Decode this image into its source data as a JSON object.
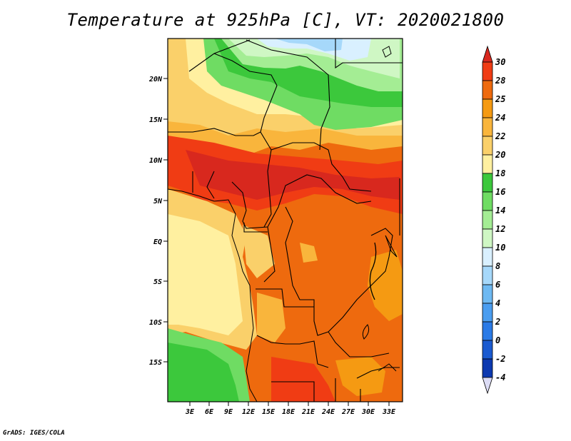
{
  "title": "Temperature at 925hPa [C], VT: 2020021800",
  "credit": "GrADS: IGES/COLA",
  "map": {
    "lat_labels": [
      "20N",
      "15N",
      "10N",
      "5N",
      "EQ",
      "5S",
      "10S",
      "15S"
    ],
    "lon_labels": [
      "3E",
      "6E",
      "9E",
      "12E",
      "15E",
      "18E",
      "21E",
      "24E",
      "27E",
      "30E",
      "33E"
    ]
  },
  "colorbar": {
    "levels": [
      "30",
      "28",
      "25",
      "24",
      "22",
      "20",
      "18",
      "16",
      "14",
      "12",
      "10",
      "8",
      "6",
      "4",
      "2",
      "0",
      "-2",
      "-4"
    ],
    "colors": {
      "above_30": "#d8281e",
      "c28_30": "#f03c14",
      "c25_28": "#ee6a0e",
      "c24_25": "#f59a12",
      "c22_24": "#f9b53c",
      "c20_22": "#fad06a",
      "c18_20": "#fff0a0",
      "c16_18": "#3cc83c",
      "c14_16": "#6fdc63",
      "c12_14": "#a4ed94",
      "c10_12": "#cff7c4",
      "c8_10": "#d9f0ff",
      "c6_8": "#a6d8fa",
      "c4_6": "#6eb9f2",
      "c2_4": "#4a9df0",
      "c0_2": "#2a7ae6",
      "cm2_0": "#1a5ad0",
      "cm4_m2": "#0c38b0",
      "below_m4": "#dcdcf5"
    }
  }
}
